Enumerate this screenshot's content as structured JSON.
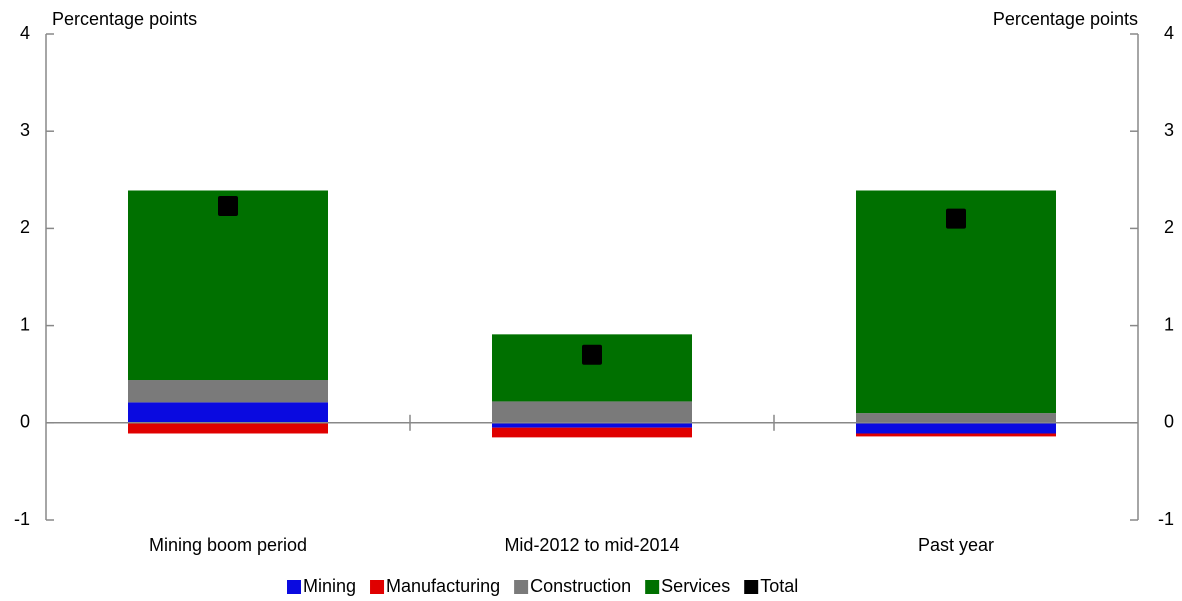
{
  "chart_data": {
    "type": "bar",
    "stacked": true,
    "ylabel": "Percentage points",
    "y2label": "Percentage points",
    "categories": [
      "Mining boom period",
      "Mid-2012 to mid-2014",
      "Past year"
    ],
    "series": [
      {
        "name": "Mining",
        "color": "#0a0ae0",
        "values": [
          0.21,
          -0.05,
          -0.11
        ]
      },
      {
        "name": "Manufacturing",
        "color": "#e00000",
        "values": [
          -0.11,
          -0.1,
          -0.03
        ]
      },
      {
        "name": "Construction",
        "color": "#7a7a7a",
        "values": [
          0.23,
          0.22,
          0.1
        ]
      },
      {
        "name": "Services",
        "color": "#007000",
        "values": [
          1.95,
          0.69,
          2.29
        ]
      },
      {
        "name": "Total",
        "color": "#000000",
        "type": "scatter",
        "values": [
          2.23,
          0.7,
          2.1
        ]
      }
    ],
    "ylim": [
      -1,
      4
    ],
    "yticks": [
      -1,
      0,
      1,
      2,
      3,
      4
    ],
    "y2lim": [
      -1,
      4
    ],
    "y2ticks": [
      -1,
      0,
      1,
      2,
      3,
      4
    ],
    "legend": "bottom"
  }
}
